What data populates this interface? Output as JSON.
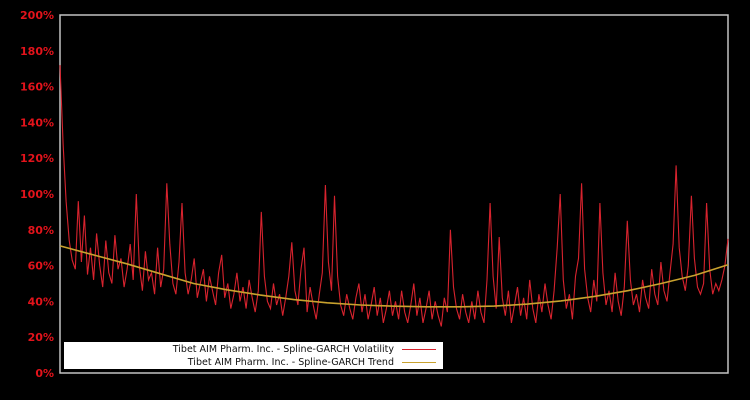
{
  "window": {
    "background": "#000000"
  },
  "colors": {
    "tick_label": "#e3131b",
    "plot_border": "#c3c3c3",
    "legend_background": "#ffffff",
    "legend_text": "#111111"
  },
  "axis": {
    "y_ticks": [
      {
        "label": "0%",
        "value": 0
      },
      {
        "label": "20%",
        "value": 20
      },
      {
        "label": "40%",
        "value": 40
      },
      {
        "label": "60%",
        "value": 60
      },
      {
        "label": "80%",
        "value": 80
      },
      {
        "label": "100%",
        "value": 100
      },
      {
        "label": "120%",
        "value": 120
      },
      {
        "label": "140%",
        "value": 140
      },
      {
        "label": "160%",
        "value": 160
      },
      {
        "label": "180%",
        "value": 180
      },
      {
        "label": "200%",
        "value": 200
      }
    ]
  },
  "chart_data": {
    "type": "line",
    "title": "",
    "xlabel": "",
    "ylabel": "",
    "ylim": [
      0,
      200
    ],
    "y_tick_step": 20,
    "x_axis_labels_visible": false,
    "grid": false,
    "background": "#000000",
    "legend_position": "bottom-center-inside",
    "series": [
      {
        "name": "Tibet AIM Pharm. Inc. - Spline-GARCH Volatility",
        "color": "#d8232e",
        "unit": "%",
        "values": [
          172,
          128,
          96,
          74,
          63,
          58,
          96,
          62,
          88,
          55,
          70,
          52,
          78,
          60,
          48,
          74,
          56,
          50,
          77,
          58,
          64,
          48,
          58,
          72,
          52,
          100,
          60,
          46,
          68,
          52,
          56,
          44,
          70,
          48,
          58,
          106,
          72,
          50,
          44,
          62,
          95,
          56,
          44,
          52,
          64,
          42,
          50,
          58,
          40,
          54,
          46,
          38,
          56,
          66,
          42,
          50,
          36,
          44,
          56,
          40,
          48,
          36,
          52,
          42,
          34,
          46,
          90,
          54,
          40,
          36,
          50,
          38,
          44,
          32,
          42,
          54,
          73,
          46,
          38,
          58,
          70,
          34,
          48,
          38,
          30,
          44,
          56,
          105,
          62,
          46,
          99,
          54,
          38,
          32,
          44,
          36,
          30,
          42,
          50,
          34,
          44,
          30,
          38,
          48,
          32,
          42,
          28,
          36,
          46,
          32,
          40,
          30,
          46,
          34,
          28,
          38,
          50,
          32,
          42,
          28,
          36,
          46,
          30,
          40,
          32,
          26,
          42,
          34,
          80,
          48,
          36,
          30,
          44,
          34,
          28,
          40,
          30,
          46,
          34,
          28,
          52,
          95,
          54,
          36,
          76,
          42,
          32,
          46,
          28,
          38,
          48,
          32,
          42,
          30,
          52,
          36,
          28,
          44,
          34,
          50,
          38,
          30,
          46,
          70,
          100,
          52,
          36,
          44,
          30,
          54,
          64,
          106,
          58,
          42,
          34,
          52,
          40,
          95,
          56,
          38,
          46,
          34,
          56,
          40,
          32,
          48,
          85,
          52,
          38,
          44,
          34,
          52,
          42,
          36,
          58,
          44,
          38,
          62,
          46,
          40,
          56,
          72,
          116,
          70,
          54,
          46,
          60,
          99,
          64,
          48,
          44,
          50,
          95,
          58,
          44,
          50,
          46,
          52,
          60,
          75
        ]
      },
      {
        "name": "Tibet AIM Pharm. Inc. - Spline-GARCH Trend",
        "color": "#c9a22e",
        "unit": "%",
        "x_frac": [
          0,
          0.05,
          0.1,
          0.15,
          0.2,
          0.25,
          0.3,
          0.35,
          0.4,
          0.45,
          0.5,
          0.55,
          0.6,
          0.65,
          0.7,
          0.75,
          0.8,
          0.85,
          0.9,
          0.95,
          1.0
        ],
        "values": [
          71,
          66,
          61,
          55.5,
          50,
          46.5,
          43.5,
          41,
          39.2,
          38,
          37.3,
          37,
          37,
          37.4,
          38.5,
          40.3,
          42.8,
          46,
          50,
          54.5,
          60.5
        ]
      }
    ]
  }
}
